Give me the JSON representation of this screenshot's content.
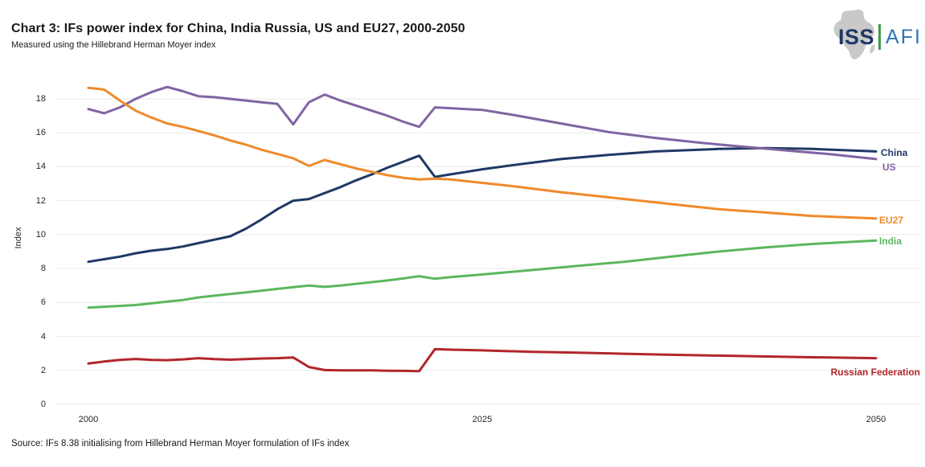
{
  "header": {
    "title": "Chart 3: IFs power index for China, India Russia, US and EU27, 2000-2050",
    "subtitle": "Measured using the Hillebrand Herman Moyer index"
  },
  "logo": {
    "iss_text": "ISS",
    "afi_text": "AFI",
    "iss_color": "#1F3864",
    "afi_color": "#2E75B6",
    "bar_color": "#3F9C4D",
    "map_color": "#C9C9C9"
  },
  "source": "Source: IFs 8.38 initialising from Hillebrand Herman Moyer formulation of IFs index",
  "chart_data": {
    "type": "line",
    "title": "Chart 3: IFs power index for China, India Russia, US and EU27, 2000-2050",
    "subtitle": "Measured using the Hillebrand Herman Moyer index",
    "xlabel": "",
    "ylabel": "Index",
    "xlim": [
      2000,
      2050
    ],
    "ylim": [
      0,
      18
    ],
    "grid": true,
    "grid_color": "#E9E9E9",
    "legend_position": "right-end-labels",
    "xticks": [
      2000,
      2025,
      2050
    ],
    "yticks": [
      0,
      2,
      4,
      6,
      8,
      10,
      12,
      14,
      16,
      18
    ],
    "series": [
      {
        "name": "China",
        "color": "#1F3864",
        "points": [
          [
            2000,
            8.4
          ],
          [
            2001,
            8.55
          ],
          [
            2002,
            8.7
          ],
          [
            2003,
            8.9
          ],
          [
            2004,
            9.05
          ],
          [
            2005,
            9.15
          ],
          [
            2006,
            9.3
          ],
          [
            2007,
            9.5
          ],
          [
            2008,
            9.7
          ],
          [
            2009,
            9.9
          ],
          [
            2010,
            10.35
          ],
          [
            2011,
            10.9
          ],
          [
            2012,
            11.5
          ],
          [
            2013,
            12.0
          ],
          [
            2014,
            12.1
          ],
          [
            2015,
            12.45
          ],
          [
            2016,
            12.8
          ],
          [
            2017,
            13.2
          ],
          [
            2018,
            13.55
          ],
          [
            2019,
            13.95
          ],
          [
            2020,
            14.3
          ],
          [
            2021,
            14.65
          ],
          [
            2022,
            13.4
          ],
          [
            2023,
            13.55
          ],
          [
            2024,
            13.7
          ],
          [
            2025,
            13.85
          ],
          [
            2027,
            14.1
          ],
          [
            2030,
            14.45
          ],
          [
            2033,
            14.7
          ],
          [
            2036,
            14.9
          ],
          [
            2040,
            15.05
          ],
          [
            2043,
            15.1
          ],
          [
            2046,
            15.05
          ],
          [
            2050,
            14.9
          ]
        ]
      },
      {
        "name": "US",
        "color": "#8064A2",
        "points": [
          [
            2000,
            17.4
          ],
          [
            2001,
            17.15
          ],
          [
            2002,
            17.5
          ],
          [
            2003,
            18.0
          ],
          [
            2004,
            18.4
          ],
          [
            2005,
            18.7
          ],
          [
            2006,
            18.45
          ],
          [
            2007,
            18.15
          ],
          [
            2008,
            18.1
          ],
          [
            2009,
            18.0
          ],
          [
            2010,
            17.9
          ],
          [
            2011,
            17.8
          ],
          [
            2012,
            17.7
          ],
          [
            2013,
            16.5
          ],
          [
            2014,
            17.8
          ],
          [
            2015,
            18.25
          ],
          [
            2016,
            17.9
          ],
          [
            2017,
            17.6
          ],
          [
            2018,
            17.3
          ],
          [
            2019,
            17.0
          ],
          [
            2020,
            16.65
          ],
          [
            2021,
            16.35
          ],
          [
            2022,
            17.5
          ],
          [
            2023,
            17.45
          ],
          [
            2024,
            17.4
          ],
          [
            2025,
            17.35
          ],
          [
            2027,
            17.05
          ],
          [
            2030,
            16.55
          ],
          [
            2033,
            16.05
          ],
          [
            2036,
            15.7
          ],
          [
            2039,
            15.4
          ],
          [
            2042,
            15.15
          ],
          [
            2045,
            14.9
          ],
          [
            2047,
            14.75
          ],
          [
            2050,
            14.45
          ]
        ]
      },
      {
        "name": "EU27",
        "color": "#EF8A2C",
        "points": [
          [
            2000,
            18.65
          ],
          [
            2001,
            18.55
          ],
          [
            2002,
            17.9
          ],
          [
            2003,
            17.3
          ],
          [
            2004,
            16.9
          ],
          [
            2005,
            16.55
          ],
          [
            2006,
            16.35
          ],
          [
            2007,
            16.1
          ],
          [
            2008,
            15.85
          ],
          [
            2009,
            15.55
          ],
          [
            2010,
            15.3
          ],
          [
            2011,
            15.0
          ],
          [
            2012,
            14.75
          ],
          [
            2013,
            14.5
          ],
          [
            2014,
            14.05
          ],
          [
            2015,
            14.4
          ],
          [
            2016,
            14.15
          ],
          [
            2017,
            13.9
          ],
          [
            2018,
            13.7
          ],
          [
            2019,
            13.5
          ],
          [
            2020,
            13.35
          ],
          [
            2021,
            13.25
          ],
          [
            2022,
            13.3
          ],
          [
            2023,
            13.25
          ],
          [
            2024,
            13.15
          ],
          [
            2025,
            13.05
          ],
          [
            2027,
            12.85
          ],
          [
            2030,
            12.5
          ],
          [
            2033,
            12.2
          ],
          [
            2036,
            11.9
          ],
          [
            2040,
            11.5
          ],
          [
            2043,
            11.3
          ],
          [
            2046,
            11.1
          ],
          [
            2050,
            10.95
          ]
        ]
      },
      {
        "name": "India",
        "color": "#5BB75E",
        "points": [
          [
            2000,
            5.7
          ],
          [
            2001,
            5.75
          ],
          [
            2002,
            5.8
          ],
          [
            2003,
            5.85
          ],
          [
            2004,
            5.95
          ],
          [
            2005,
            6.05
          ],
          [
            2006,
            6.15
          ],
          [
            2007,
            6.3
          ],
          [
            2008,
            6.4
          ],
          [
            2009,
            6.5
          ],
          [
            2010,
            6.6
          ],
          [
            2011,
            6.7
          ],
          [
            2012,
            6.8
          ],
          [
            2013,
            6.9
          ],
          [
            2014,
            7.0
          ],
          [
            2015,
            6.92
          ],
          [
            2016,
            7.0
          ],
          [
            2017,
            7.1
          ],
          [
            2018,
            7.2
          ],
          [
            2019,
            7.3
          ],
          [
            2020,
            7.42
          ],
          [
            2021,
            7.55
          ],
          [
            2022,
            7.4
          ],
          [
            2023,
            7.5
          ],
          [
            2025,
            7.65
          ],
          [
            2028,
            7.9
          ],
          [
            2031,
            8.15
          ],
          [
            2034,
            8.4
          ],
          [
            2037,
            8.7
          ],
          [
            2040,
            9.0
          ],
          [
            2043,
            9.25
          ],
          [
            2046,
            9.45
          ],
          [
            2050,
            9.65
          ]
        ]
      },
      {
        "name": "Russian Federation",
        "color": "#B2262B",
        "points": [
          [
            2000,
            2.4
          ],
          [
            2001,
            2.52
          ],
          [
            2002,
            2.62
          ],
          [
            2003,
            2.67
          ],
          [
            2004,
            2.62
          ],
          [
            2005,
            2.6
          ],
          [
            2006,
            2.65
          ],
          [
            2007,
            2.72
          ],
          [
            2008,
            2.66
          ],
          [
            2009,
            2.63
          ],
          [
            2010,
            2.66
          ],
          [
            2011,
            2.7
          ],
          [
            2012,
            2.72
          ],
          [
            2013,
            2.76
          ],
          [
            2014,
            2.2
          ],
          [
            2015,
            2.02
          ],
          [
            2016,
            2.0
          ],
          [
            2017,
            2.0
          ],
          [
            2018,
            2.0
          ],
          [
            2019,
            1.98
          ],
          [
            2020,
            1.97
          ],
          [
            2021,
            1.95
          ],
          [
            2022,
            3.25
          ],
          [
            2023,
            3.22
          ],
          [
            2025,
            3.18
          ],
          [
            2028,
            3.1
          ],
          [
            2031,
            3.04
          ],
          [
            2034,
            2.98
          ],
          [
            2037,
            2.92
          ],
          [
            2040,
            2.87
          ],
          [
            2043,
            2.82
          ],
          [
            2046,
            2.77
          ],
          [
            2050,
            2.72
          ]
        ]
      }
    ]
  }
}
